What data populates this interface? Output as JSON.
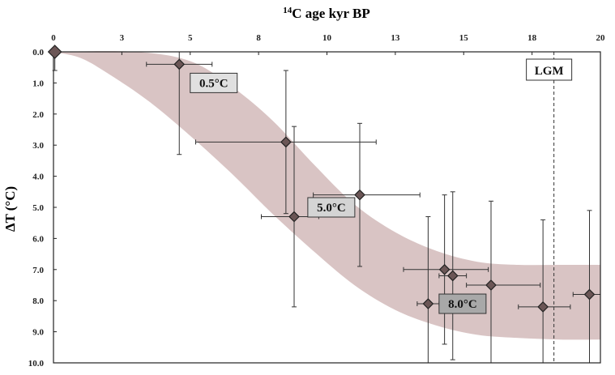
{
  "chart_data": {
    "type": "scatter",
    "title": "",
    "xlabel_sup": "14",
    "xlabel_main": "C age kyr BP",
    "ylabel": "ΔT (°C)",
    "xlim": [
      0,
      20
    ],
    "ylim": [
      0,
      10
    ],
    "y_inverted": true,
    "x_axis_position": "top",
    "x_ticks": [
      {
        "value": 0,
        "label": "0"
      },
      {
        "value": 2.5,
        "label": "3"
      },
      {
        "value": 5,
        "label": "5"
      },
      {
        "value": 7.5,
        "label": "8"
      },
      {
        "value": 10,
        "label": "10"
      },
      {
        "value": 12.5,
        "label": "13"
      },
      {
        "value": 15,
        "label": "15"
      },
      {
        "value": 17.5,
        "label": "18"
      },
      {
        "value": 20,
        "label": "20"
      }
    ],
    "y_ticks": [
      {
        "value": 0,
        "label": "0.0"
      },
      {
        "value": 1,
        "label": "1.0"
      },
      {
        "value": 2,
        "label": "2.0"
      },
      {
        "value": 3,
        "label": "3.0"
      },
      {
        "value": 4,
        "label": "4.0"
      },
      {
        "value": 5,
        "label": "5.0"
      },
      {
        "value": 6,
        "label": "6.0"
      },
      {
        "value": 7,
        "label": "7.0"
      },
      {
        "value": 8,
        "label": "8.0"
      },
      {
        "value": 9,
        "label": "9.0"
      },
      {
        "value": 10,
        "label": "10.0"
      }
    ],
    "points": [
      {
        "x": 0.05,
        "y": 0.0,
        "xmin": 0.0,
        "xmax": 0.1,
        "ymin": 0.0,
        "ymax": 0.6
      },
      {
        "x": 4.6,
        "y": 0.4,
        "xmin": 3.4,
        "xmax": 5.8,
        "ymin": 0.0,
        "ymax": 3.3
      },
      {
        "x": 8.5,
        "y": 2.9,
        "xmin": 5.2,
        "xmax": 11.8,
        "ymin": 0.6,
        "ymax": 5.2
      },
      {
        "x": 8.8,
        "y": 5.3,
        "xmin": 7.6,
        "xmax": 9.7,
        "ymin": 2.4,
        "ymax": 8.2
      },
      {
        "x": 11.2,
        "y": 4.6,
        "xmin": 9.5,
        "xmax": 13.4,
        "ymin": 2.3,
        "ymax": 6.9
      },
      {
        "x": 13.7,
        "y": 8.1,
        "xmin": 13.3,
        "xmax": 14.1,
        "ymin": 5.3,
        "ymax": 10.0
      },
      {
        "x": 14.3,
        "y": 7.0,
        "xmin": 12.8,
        "xmax": 15.9,
        "ymin": 4.6,
        "ymax": 9.4
      },
      {
        "x": 14.6,
        "y": 7.2,
        "xmin": 14.1,
        "xmax": 15.1,
        "ymin": 4.5,
        "ymax": 9.9
      },
      {
        "x": 16.0,
        "y": 7.5,
        "xmin": 15.1,
        "xmax": 17.8,
        "ymin": 4.8,
        "ymax": 10.0
      },
      {
        "x": 17.9,
        "y": 8.2,
        "xmin": 17.0,
        "xmax": 18.9,
        "ymin": 5.4,
        "ymax": 10.0
      },
      {
        "x": 19.6,
        "y": 7.8,
        "xmin": 19.0,
        "xmax": 20.0,
        "ymin": 5.1,
        "ymax": 10.0
      }
    ],
    "band": {
      "upper": [
        [
          0,
          0
        ],
        [
          3,
          0
        ],
        [
          5,
          0.3
        ],
        [
          6.5,
          1.1
        ],
        [
          8,
          2.2
        ],
        [
          9.5,
          3.6
        ],
        [
          11,
          4.9
        ],
        [
          12.5,
          5.8
        ],
        [
          14,
          6.4
        ],
        [
          15.5,
          6.75
        ],
        [
          17,
          6.85
        ],
        [
          18.5,
          6.85
        ],
        [
          20,
          6.85
        ]
      ],
      "lower": [
        [
          0,
          0
        ],
        [
          1,
          0.2
        ],
        [
          2,
          0.7
        ],
        [
          3.5,
          1.6
        ],
        [
          5,
          2.7
        ],
        [
          6.5,
          3.9
        ],
        [
          8,
          5.2
        ],
        [
          9.5,
          6.4
        ],
        [
          11,
          7.5
        ],
        [
          12.5,
          8.3
        ],
        [
          14,
          8.8
        ],
        [
          15.5,
          9.1
        ],
        [
          17,
          9.2
        ],
        [
          18.5,
          9.25
        ],
        [
          20,
          9.25
        ]
      ],
      "color": "#d9c4c4"
    },
    "reference_line": {
      "x": 18.3,
      "label": "LGM"
    },
    "annotations": [
      {
        "text": "0.5°C",
        "x": 5.0,
        "y": 1.0,
        "fill": "#e0e0e0"
      },
      {
        "text": "5.0°C",
        "x": 9.3,
        "y": 5.0,
        "fill": "#d4d4d4"
      },
      {
        "text": "8.0°C",
        "x": 14.1,
        "y": 8.1,
        "fill": "#a8a8a8"
      }
    ],
    "marker_color": "#6b5656",
    "grid": false,
    "legend": "none"
  }
}
